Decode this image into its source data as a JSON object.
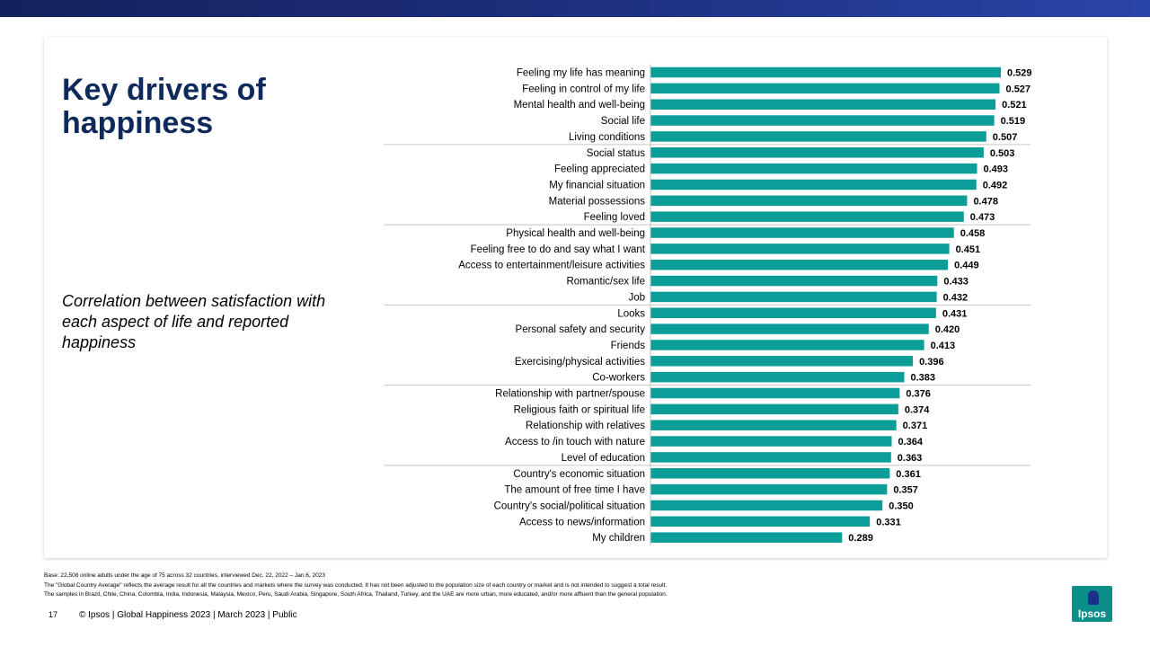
{
  "slide": {
    "title": "Key drivers of happiness",
    "subtitle": "Correlation between satisfaction with each aspect of life and reported happiness",
    "footnotes": [
      "Base: 22,508 online adults under the age of 75 across 32 countries, interviewed Dec. 22, 2022 – Jan.6, 2023",
      "The \"Global Country Average\" reflects the average result for all the countries and markets where the survey was conducted. It has not been adjusted to the population size of each country or market and is not intended to suggest a total result.",
      "The samples in Brazil, Chile, China, Colombia, India, Indonesia, Malaysia, Mexico, Peru, Saudi Arabia, Singapore, South Africa, Thailand, Turkey, and the UAE are more urban, more educated, and/or more affluent than the general population."
    ],
    "page_number": "17",
    "footer_text": "© Ipsos | Global Happiness 2023 | March 2023 | Public",
    "logo_text": "Ipsos",
    "colors": {
      "bar": "#0b9e98",
      "title": "#0e2a5c",
      "topbar": "#1d2f7d",
      "logo": "#0a8f8a"
    }
  },
  "chart_data": {
    "type": "bar",
    "orientation": "horizontal",
    "categories": [
      "Feeling my life has meaning",
      "Feeling in control of my life",
      "Mental health and well-being",
      "Social life",
      "Living conditions",
      "Social status",
      "Feeling appreciated",
      "My financial situation",
      "Material possessions",
      "Feeling loved",
      "Physical health and well-being",
      "Feeling free to do and say what I want",
      "Access to entertainment/leisure activities",
      "Romantic/sex life",
      "Job",
      "Looks",
      "Personal safety and security",
      "Friends",
      "Exercising/physical activities",
      "Co-workers",
      "Relationship with partner/spouse",
      "Religious faith or spiritual life",
      "Relationship with relatives",
      "Access to /in touch with nature",
      "Level of education",
      "Country's economic situation",
      "The amount of free time I have",
      "Country's social/political situation",
      "Access to news/information",
      "My children"
    ],
    "values": [
      0.529,
      0.527,
      0.521,
      0.519,
      0.507,
      0.503,
      0.493,
      0.492,
      0.478,
      0.473,
      0.458,
      0.451,
      0.449,
      0.433,
      0.432,
      0.431,
      0.42,
      0.413,
      0.396,
      0.383,
      0.376,
      0.374,
      0.371,
      0.364,
      0.363,
      0.361,
      0.357,
      0.35,
      0.331,
      0.289
    ],
    "value_labels": [
      "0.529",
      "0.527",
      "0.521",
      "0.519",
      "0.507",
      "0.503",
      "0.493",
      "0.492",
      "0.478",
      "0.473",
      "0.458",
      "0.451",
      "0.449",
      "0.433",
      "0.432",
      "0.431",
      "0.420",
      "0.413",
      "0.396",
      "0.383",
      "0.376",
      "0.374",
      "0.371",
      "0.364",
      "0.363",
      "0.361",
      "0.357",
      "0.350",
      "0.331",
      "0.289"
    ],
    "xlim": [
      0,
      0.529
    ],
    "group_size": 5,
    "grid": false,
    "legend": "none"
  }
}
